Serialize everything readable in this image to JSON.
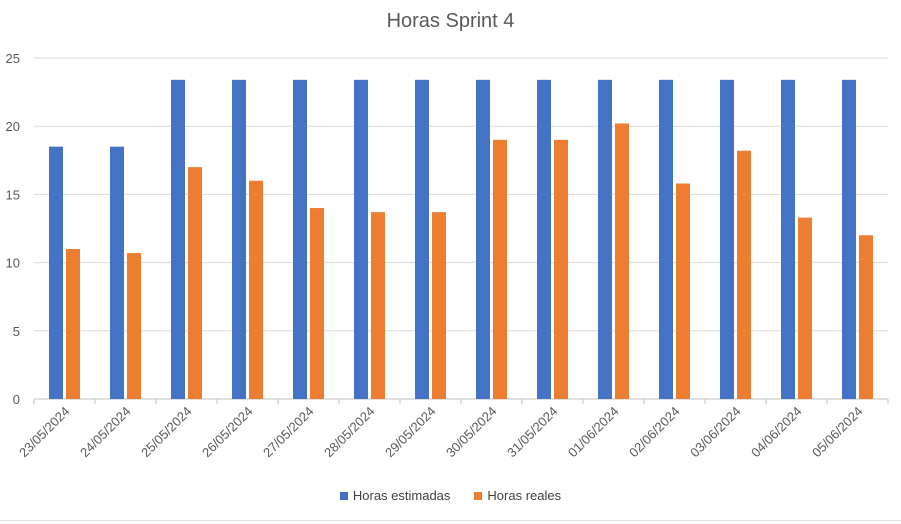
{
  "chart_data": {
    "type": "bar",
    "title": "Horas Sprint 4",
    "xlabel": "",
    "ylabel": "",
    "ylim": [
      0,
      25
    ],
    "yticks": [
      0,
      5,
      10,
      15,
      20,
      25
    ],
    "grid": true,
    "legend_position": "bottom",
    "categories": [
      "23/05/2024",
      "24/05/2024",
      "25/05/2024",
      "26/05/2024",
      "27/05/2024",
      "28/05/2024",
      "29/05/2024",
      "30/05/2024",
      "31/05/2024",
      "01/06/2024",
      "02/06/2024",
      "03/06/2024",
      "04/06/2024",
      "05/06/2024"
    ],
    "series": [
      {
        "name": "Horas estimadas",
        "color": "#4472C4",
        "values": [
          18.5,
          18.5,
          23.4,
          23.4,
          23.4,
          23.4,
          23.4,
          23.4,
          23.4,
          23.4,
          23.4,
          23.4,
          23.4,
          23.4
        ]
      },
      {
        "name": "Horas reales",
        "color": "#ED7D31",
        "values": [
          11,
          10.7,
          17,
          16,
          14,
          13.7,
          13.7,
          19,
          19,
          20.2,
          15.8,
          18.2,
          13.3,
          12
        ]
      }
    ]
  }
}
